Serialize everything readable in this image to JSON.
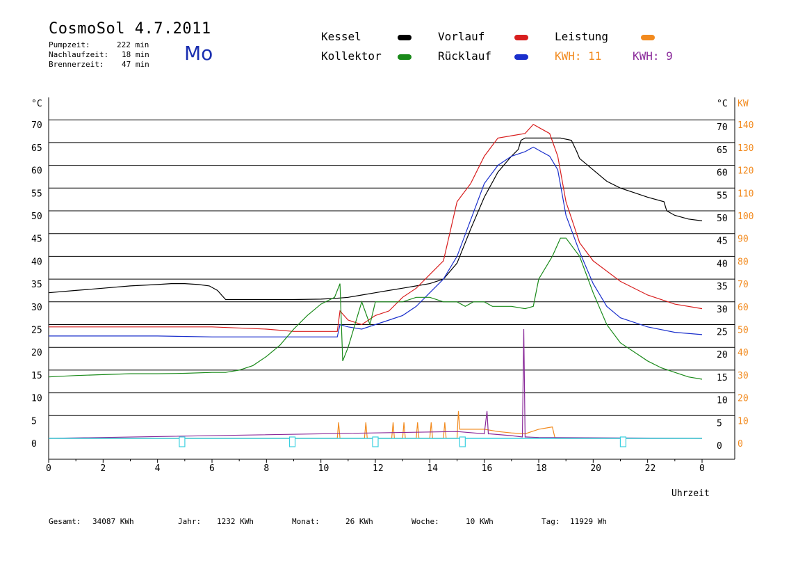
{
  "header": {
    "title": "CosmoSol 4.7.2011",
    "weekday": "Mo",
    "stats": [
      {
        "label": "Pumpzeit:",
        "value": "222 min"
      },
      {
        "label": "Nachlaufzeit:",
        "value": "18 min"
      },
      {
        "label": "Brennerzeit:",
        "value": "47 min"
      }
    ]
  },
  "legend": {
    "kessel": {
      "label": "Kessel",
      "color": "#000000"
    },
    "vorlauf": {
      "label": "Vorlauf",
      "color": "#d81e1e"
    },
    "leistung": {
      "label": "Leistung",
      "color": "#f28a1e"
    },
    "kollektor": {
      "label": "Kollektor",
      "color": "#1a8a1a"
    },
    "ruecklauf": {
      "label": "Rücklauf",
      "color": "#1a2fcc"
    },
    "kwh_orange": {
      "label": "KWH: 11",
      "color": "#f28a1e"
    },
    "kwh_purple": {
      "label": "KWH: 9",
      "color": "#8a2a9a"
    }
  },
  "footer": {
    "gesamt": {
      "label": "Gesamt:",
      "value": "34087 KWh"
    },
    "jahr": {
      "label": "Jahr:",
      "value": "1232 KWh"
    },
    "monat": {
      "label": "Monat:",
      "value": "26 KWh"
    },
    "woche": {
      "label": "Woche:",
      "value": "10 KWh"
    },
    "tag": {
      "label": "Tag:",
      "value": "11929 Wh"
    }
  },
  "chart_data": {
    "type": "line",
    "xlabel": "Uhrzeit",
    "ylabel": "°C",
    "ylabel_right": "KW",
    "xlim": [
      0,
      24
    ],
    "x_tick_labels": [
      "0",
      "2",
      "4",
      "6",
      "8",
      "10",
      "12",
      "14",
      "16",
      "18",
      "20",
      "22",
      "0"
    ],
    "ylim": [
      0,
      70
    ],
    "y_ticks": [
      0,
      5,
      10,
      15,
      20,
      25,
      30,
      35,
      40,
      45,
      50,
      55,
      60,
      65,
      70
    ],
    "y_right_kw_ticks": [
      0,
      10,
      20,
      30,
      40,
      50,
      60,
      70,
      80,
      90,
      100,
      110,
      120,
      130,
      140
    ],
    "grid": true,
    "series": [
      {
        "name": "Kessel",
        "color": "#000000",
        "x": [
          0,
          1,
          2,
          3,
          4,
          4.5,
          5,
          5.5,
          5.9,
          6.2,
          6.5,
          7,
          8,
          9,
          10,
          10.6,
          11,
          11.5,
          12,
          12.5,
          13,
          13.5,
          14,
          14.5,
          15,
          15.5,
          16,
          16.5,
          17,
          17.25,
          17.35,
          17.5,
          17.8,
          18.2,
          18.8,
          19.2,
          19.4,
          19.5,
          20,
          20.5,
          21,
          21.5,
          22,
          22.6,
          22.7,
          23,
          23.5,
          24
        ],
        "values": [
          32,
          32.5,
          33,
          33.5,
          33.8,
          34,
          34,
          33.8,
          33.5,
          32.5,
          30.5,
          30.5,
          30.5,
          30.5,
          30.6,
          30.8,
          31,
          31.5,
          32,
          32.5,
          33,
          33.5,
          34,
          35,
          38.5,
          46,
          53,
          58.5,
          62,
          63.5,
          65.5,
          66,
          66,
          66,
          66,
          65.5,
          63,
          61.5,
          59,
          56.5,
          55,
          54,
          53,
          52,
          50,
          49,
          48.2,
          47.8
        ]
      },
      {
        "name": "Vorlauf",
        "color": "#d81e1e",
        "x": [
          0,
          2,
          4,
          6,
          8,
          9,
          10,
          10.6,
          10.7,
          11,
          11.5,
          12,
          12.5,
          13,
          13.5,
          14,
          14.5,
          15,
          15.5,
          16,
          16.5,
          17,
          17.5,
          17.8,
          18.1,
          18.4,
          18.7,
          19,
          19.5,
          20,
          21,
          22,
          23,
          24
        ],
        "values": [
          24.5,
          24.5,
          24.5,
          24.5,
          24,
          23.5,
          23.5,
          23.5,
          28,
          26,
          25,
          27,
          28,
          31,
          33,
          36,
          39,
          52,
          56,
          62,
          66,
          66.5,
          67,
          69,
          68,
          67,
          62,
          52,
          43,
          39,
          34.5,
          31.5,
          29.5,
          28.5
        ]
      },
      {
        "name": "Rücklauf",
        "color": "#1a2fcc",
        "x": [
          0,
          2,
          4,
          6,
          8,
          9,
          10,
          10.6,
          10.7,
          11,
          11.5,
          12,
          12.5,
          13,
          13.5,
          14,
          14.5,
          15,
          15.5,
          16,
          16.5,
          17,
          17.5,
          17.8,
          18.1,
          18.4,
          18.7,
          19,
          19.5,
          20,
          20.5,
          21,
          22,
          23,
          24
        ],
        "values": [
          22.5,
          22.5,
          22.5,
          22.3,
          22.3,
          22.3,
          22.3,
          22.3,
          25,
          24.5,
          24,
          25,
          26,
          27,
          29,
          32,
          35,
          40,
          48,
          56,
          60,
          62,
          63,
          64,
          63,
          62,
          59,
          49,
          41,
          34,
          29,
          26.5,
          24.5,
          23.3,
          22.8
        ]
      },
      {
        "name": "Kollektor",
        "color": "#1a8a1a",
        "x": [
          0,
          1,
          2,
          3,
          4,
          5,
          6,
          6.5,
          7,
          7.5,
          8,
          8.5,
          9,
          9.5,
          10,
          10.5,
          10.7,
          10.8,
          11,
          11.5,
          11.8,
          12,
          12.5,
          13,
          13.5,
          14,
          14.5,
          15,
          15.3,
          15.6,
          16,
          16.3,
          16.5,
          17,
          17.5,
          17.8,
          18,
          18.5,
          18.8,
          19,
          19.5,
          20,
          20.5,
          21,
          21.5,
          22,
          22.5,
          23,
          23.5,
          24
        ],
        "values": [
          13.5,
          13.8,
          14,
          14.2,
          14.2,
          14.3,
          14.5,
          14.5,
          15,
          16,
          18,
          20.5,
          24,
          27,
          29.5,
          31,
          34,
          17,
          20,
          30,
          25,
          30,
          30,
          30,
          31,
          31,
          30,
          30,
          29,
          30,
          30,
          29,
          29,
          29,
          28.5,
          29,
          35,
          40,
          44,
          44,
          40,
          32,
          25,
          21,
          19,
          17,
          15.5,
          14.5,
          13.5,
          13
        ]
      },
      {
        "name": "Leistung",
        "color": "#f28a1e",
        "x": [
          0,
          10.6,
          10.65,
          10.7,
          11.6,
          11.65,
          11.7,
          12.6,
          12.65,
          12.7,
          13,
          13.05,
          13.1,
          13.5,
          13.55,
          13.6,
          14,
          14.05,
          14.1,
          14.5,
          14.55,
          14.6,
          15,
          15.05,
          15.1,
          16,
          16.5,
          17,
          17.5,
          18,
          18.5,
          18.6,
          24
        ],
        "values": [
          0,
          0,
          3.5,
          0,
          0,
          3.5,
          0,
          0,
          3.5,
          0,
          0,
          3.5,
          0,
          0,
          3.5,
          0,
          0,
          3.5,
          0,
          0,
          3.5,
          0,
          0,
          6,
          2,
          2,
          1.5,
          1.2,
          1,
          2,
          2.5,
          0,
          0
        ]
      },
      {
        "name": "KWH purple",
        "color": "#8a2a9a",
        "x": [
          0,
          15,
          16,
          16.1,
          16.15,
          16.2,
          17,
          17.4,
          17.45,
          17.5,
          17.55,
          18,
          24
        ],
        "values": [
          0,
          1.5,
          1,
          6,
          1,
          1,
          0.6,
          0.3,
          24,
          0.3,
          0.3,
          0.2,
          0
        ]
      }
    ],
    "pump_markers_x": [
      4.9,
      8.95,
      12.0,
      15.2,
      21.1
    ]
  }
}
